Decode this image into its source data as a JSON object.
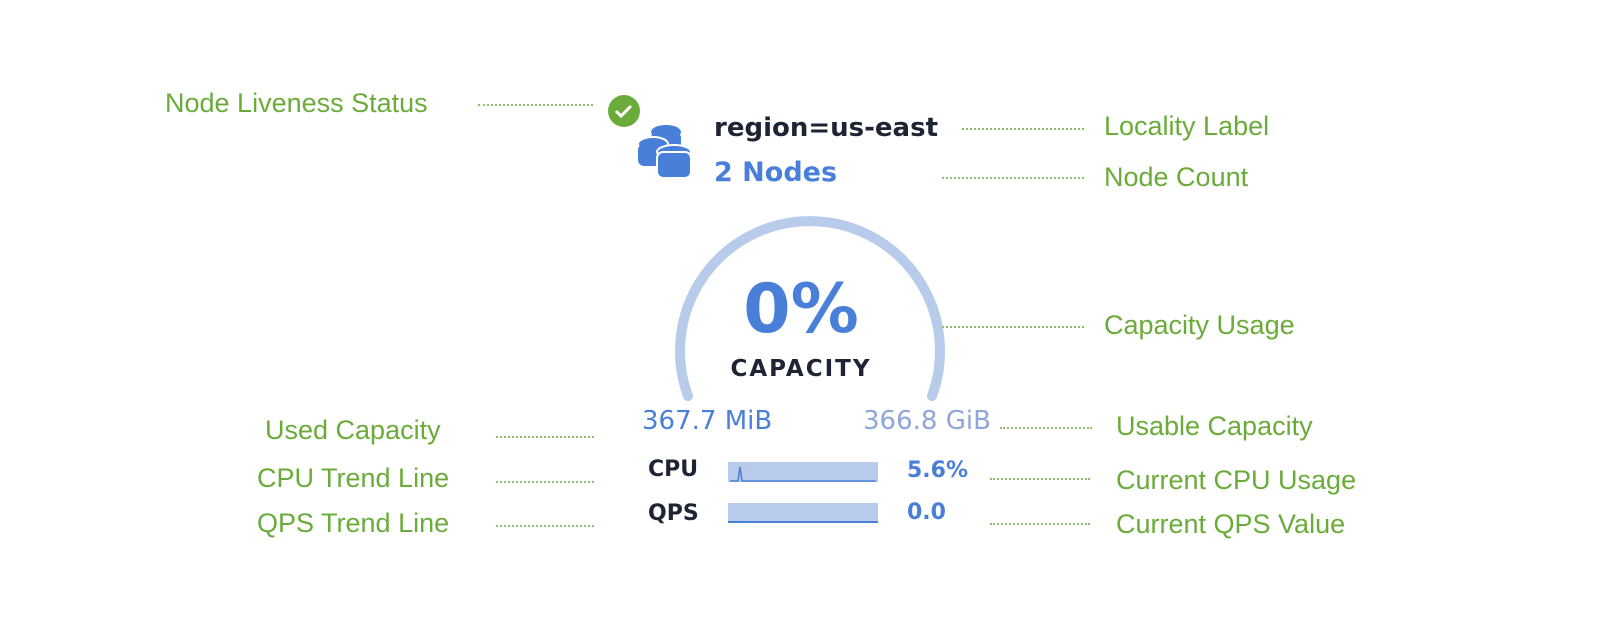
{
  "node": {
    "status_icon": "check-circle-icon",
    "locality": "region=us-east",
    "node_count": "2 Nodes",
    "icon": "database-icon"
  },
  "capacity": {
    "percent": "0%",
    "label": "CAPACITY",
    "usage_fraction": 0,
    "used": "367.7 MiB",
    "usable": "366.8 GiB"
  },
  "metrics": {
    "cpu_label": "CPU",
    "cpu_value": "5.6%",
    "qps_label": "QPS",
    "qps_value": "0.0"
  },
  "annotations": {
    "liveness": "Node Liveness Status",
    "locality": "Locality Label",
    "node_count": "Node Count",
    "capacity_usage": "Capacity Usage",
    "used_capacity": "Used Capacity",
    "usable_capacity": "Usable Capacity",
    "cpu_trend": "CPU Trend Line",
    "cpu_current": "Current CPU Usage",
    "qps_trend": "QPS Trend Line",
    "qps_current": "Current QPS Value"
  },
  "colors": {
    "annotation": "#6aab3a",
    "accent": "#4a7fd9",
    "track": "#b8cbea",
    "dark": "#1e2433"
  }
}
